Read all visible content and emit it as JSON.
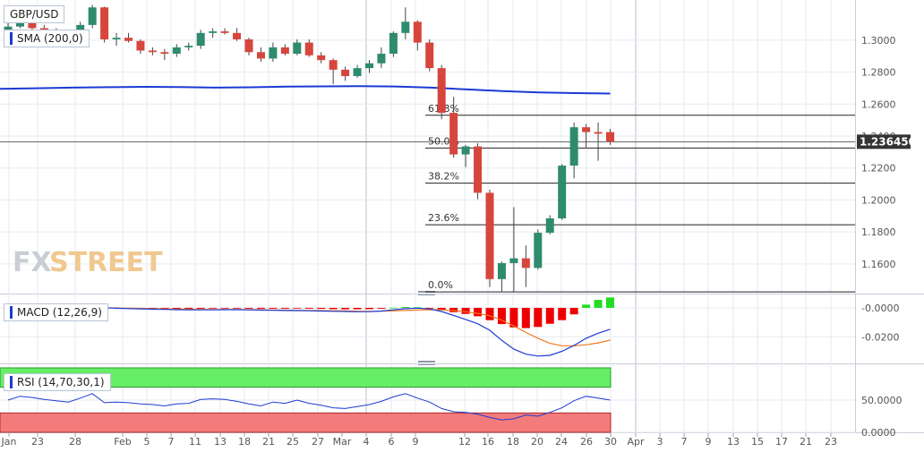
{
  "labels": {
    "pair": "GBP/USD",
    "sma": "SMA (200,0)",
    "macd": "MACD (12,26,9)",
    "rsi": "RSI (14,70,30,1)",
    "watermark_fx": "FX",
    "watermark_street": "STREET",
    "last_price": "1.236450"
  },
  "colors": {
    "bull": "#2e8b6e",
    "bear": "#d6463c",
    "sma": "#1b3ad4",
    "macd_line": "#1b3ad4",
    "signal_line": "#f07820",
    "rsi_overbought": "#66ee66",
    "rsi_oversold": "#f47b7b",
    "grid": "#e6eaf0",
    "text": "#555555"
  },
  "chart_data": [
    {
      "type": "candlestick",
      "title": "GBP/USD",
      "y_ticks": [
        "1.3000",
        "1.2800",
        "1.2600",
        "1.2400",
        "1.2200",
        "1.2000",
        "1.1800",
        "1.1600"
      ],
      "y_range": [
        1.142,
        1.324
      ],
      "x_ticks": [
        "Jan",
        "23",
        "28",
        "Feb",
        "5",
        "7",
        "11",
        "13",
        "18",
        "21",
        "25",
        "27",
        "Mar",
        "4",
        "6",
        "9",
        "12",
        "16",
        "18",
        "20",
        "24",
        "26",
        "30",
        "Apr",
        "3",
        "7",
        "9",
        "13",
        "15",
        "17",
        "21",
        "23"
      ],
      "sma_200": [
        1.2695,
        1.2699,
        1.2703,
        1.2706,
        1.2708,
        1.2707,
        1.2703,
        1.2705,
        1.2709,
        1.2711,
        1.2712,
        1.271,
        1.2703,
        1.2692,
        1.2681,
        1.2673,
        1.2669,
        1.2666
      ],
      "last_price": 1.23645,
      "fibonacci": [
        {
          "label": "0.0%",
          "value": 1.1425
        },
        {
          "label": "23.6%",
          "value": 1.1845
        },
        {
          "label": "38.2%",
          "value": 1.2105
        },
        {
          "label": "50.0%",
          "value": 1.2325
        },
        {
          "label": "61.8%",
          "value": 1.253
        }
      ],
      "candles": [
        {
          "date": "Jan 22",
          "open": 1.3055,
          "high": 1.3115,
          "low": 1.3035,
          "close": 1.3085
        },
        {
          "date": "Jan 23",
          "open": 1.3085,
          "high": 1.3165,
          "low": 1.3075,
          "close": 1.3125
        },
        {
          "date": "Jan 24",
          "open": 1.3125,
          "high": 1.314,
          "low": 1.3045,
          "close": 1.3075
        },
        {
          "date": "Jan 27",
          "open": 1.3075,
          "high": 1.3095,
          "low": 1.3035,
          "close": 1.3065
        },
        {
          "date": "Jan 28",
          "open": 1.3065,
          "high": 1.3075,
          "low": 1.2995,
          "close": 1.3015
        },
        {
          "date": "Jan 29",
          "open": 1.3015,
          "high": 1.3065,
          "low": 1.2985,
          "close": 1.3005
        },
        {
          "date": "Jan 30",
          "open": 1.3005,
          "high": 1.3115,
          "low": 1.2975,
          "close": 1.3095
        },
        {
          "date": "Jan 31",
          "open": 1.3095,
          "high": 1.322,
          "low": 1.3075,
          "close": 1.3205
        },
        {
          "date": "Feb 3",
          "open": 1.3205,
          "high": 1.321,
          "low": 1.2985,
          "close": 1.3005
        },
        {
          "date": "Feb 4",
          "open": 1.3005,
          "high": 1.3045,
          "low": 1.2965,
          "close": 1.3015
        },
        {
          "date": "Feb 5",
          "open": 1.3015,
          "high": 1.3045,
          "low": 1.2985,
          "close": 1.2995
        },
        {
          "date": "Feb 6",
          "open": 1.2995,
          "high": 1.3005,
          "low": 1.2915,
          "close": 1.2935
        },
        {
          "date": "Feb 7",
          "open": 1.2935,
          "high": 1.2955,
          "low": 1.2905,
          "close": 1.2925
        },
        {
          "date": "Feb 10",
          "open": 1.2925,
          "high": 1.2945,
          "low": 1.2875,
          "close": 1.2915
        },
        {
          "date": "Feb 11",
          "open": 1.2915,
          "high": 1.2975,
          "low": 1.2895,
          "close": 1.2955
        },
        {
          "date": "Feb 12",
          "open": 1.2955,
          "high": 1.2985,
          "low": 1.2935,
          "close": 1.2965
        },
        {
          "date": "Feb 13",
          "open": 1.2965,
          "high": 1.3065,
          "low": 1.2945,
          "close": 1.3045
        },
        {
          "date": "Feb 14",
          "open": 1.3045,
          "high": 1.3075,
          "low": 1.3015,
          "close": 1.3055
        },
        {
          "date": "Feb 17",
          "open": 1.3055,
          "high": 1.3075,
          "low": 1.3035,
          "close": 1.3045
        },
        {
          "date": "Feb 18",
          "open": 1.3045,
          "high": 1.3075,
          "low": 1.2995,
          "close": 1.3005
        },
        {
          "date": "Feb 19",
          "open": 1.3005,
          "high": 1.3015,
          "low": 1.2905,
          "close": 1.2925
        },
        {
          "date": "Feb 20",
          "open": 1.2925,
          "high": 1.2955,
          "low": 1.2865,
          "close": 1.2885
        },
        {
          "date": "Feb 21",
          "open": 1.2885,
          "high": 1.2985,
          "low": 1.2865,
          "close": 1.2955
        },
        {
          "date": "Feb 24",
          "open": 1.2955,
          "high": 1.2975,
          "low": 1.2905,
          "close": 1.2915
        },
        {
          "date": "Feb 25",
          "open": 1.2915,
          "high": 1.3005,
          "low": 1.2905,
          "close": 1.2985
        },
        {
          "date": "Feb 26",
          "open": 1.2985,
          "high": 1.3005,
          "low": 1.2895,
          "close": 1.2905
        },
        {
          "date": "Feb 27",
          "open": 1.2905,
          "high": 1.2925,
          "low": 1.2855,
          "close": 1.2875
        },
        {
          "date": "Feb 28",
          "open": 1.2875,
          "high": 1.2885,
          "low": 1.2725,
          "close": 1.2815
        },
        {
          "date": "Mar 2",
          "open": 1.2815,
          "high": 1.2835,
          "low": 1.2745,
          "close": 1.2775
        },
        {
          "date": "Mar 3",
          "open": 1.2775,
          "high": 1.2845,
          "low": 1.2765,
          "close": 1.2825
        },
        {
          "date": "Mar 4",
          "open": 1.2825,
          "high": 1.2875,
          "low": 1.2795,
          "close": 1.2855
        },
        {
          "date": "Mar 5",
          "open": 1.2855,
          "high": 1.2955,
          "low": 1.2825,
          "close": 1.2915
        },
        {
          "date": "Mar 6",
          "open": 1.2915,
          "high": 1.3055,
          "low": 1.2895,
          "close": 1.3045
        },
        {
          "date": "Mar 9",
          "open": 1.3045,
          "high": 1.3205,
          "low": 1.3005,
          "close": 1.3115
        },
        {
          "date": "Mar 10",
          "open": 1.3115,
          "high": 1.3125,
          "low": 1.2935,
          "close": 1.2985
        },
        {
          "date": "Mar 11",
          "open": 1.2985,
          "high": 1.3005,
          "low": 1.2805,
          "close": 1.2825
        },
        {
          "date": "Mar 12",
          "open": 1.2825,
          "high": 1.2845,
          "low": 1.2505,
          "close": 1.2545
        },
        {
          "date": "Mar 13",
          "open": 1.2545,
          "high": 1.2645,
          "low": 1.2265,
          "close": 1.2285
        },
        {
          "date": "Mar 16",
          "open": 1.2285,
          "high": 1.2345,
          "low": 1.2205,
          "close": 1.2335
        },
        {
          "date": "Mar 17",
          "open": 1.2335,
          "high": 1.2355,
          "low": 1.2005,
          "close": 1.2045
        },
        {
          "date": "Mar 18",
          "open": 1.2045,
          "high": 1.2065,
          "low": 1.1455,
          "close": 1.1505
        },
        {
          "date": "Mar 19",
          "open": 1.1505,
          "high": 1.1615,
          "low": 1.1425,
          "close": 1.1605
        },
        {
          "date": "Mar 20",
          "open": 1.1605,
          "high": 1.1955,
          "low": 1.1425,
          "close": 1.1635
        },
        {
          "date": "Mar 23",
          "open": 1.1635,
          "high": 1.1715,
          "low": 1.1455,
          "close": 1.1575
        },
        {
          "date": "Mar 24",
          "open": 1.1575,
          "high": 1.1815,
          "low": 1.1565,
          "close": 1.1795
        },
        {
          "date": "Mar 25",
          "open": 1.1795,
          "high": 1.1905,
          "low": 1.1785,
          "close": 1.1885
        },
        {
          "date": "Mar 26",
          "open": 1.1885,
          "high": 1.2225,
          "low": 1.1875,
          "close": 1.2215
        },
        {
          "date": "Mar 27",
          "open": 1.2215,
          "high": 1.2485,
          "low": 1.2135,
          "close": 1.2455
        },
        {
          "date": "Mar 30",
          "open": 1.2455,
          "high": 1.2475,
          "low": 1.2325,
          "close": 1.2425
        },
        {
          "date": "Mar 31",
          "open": 1.2425,
          "high": 1.2485,
          "low": 1.2245,
          "close": 1.2415
        },
        {
          "date": "Apr 1",
          "open": 1.2425,
          "high": 1.2445,
          "low": 1.2345,
          "close": 1.23645
        }
      ]
    },
    {
      "type": "bar",
      "title": "MACD (12,26,9)",
      "y_ticks": [
        "-0.0000",
        "-0.0200"
      ],
      "y_range": [
        -0.0365,
        0.008
      ],
      "histogram": [
        0.0003,
        0.0004,
        0.0005,
        0.0004,
        0.0004,
        0.0003,
        0.0003,
        0.0004,
        0.0002,
        0.0001,
        -0.0002,
        -0.0004,
        -0.0006,
        -0.0007,
        -0.0007,
        -0.0007,
        -0.0006,
        -0.0005,
        -0.0005,
        -0.0005,
        -0.0006,
        -0.0007,
        -0.0006,
        -0.0006,
        -0.0005,
        -0.0006,
        -0.0007,
        -0.0009,
        -0.001,
        -0.001,
        -0.0009,
        -0.0006,
        0.0001,
        0.0006,
        0.0004,
        -0.0003,
        -0.0016,
        -0.003,
        -0.0042,
        -0.0058,
        -0.0085,
        -0.0112,
        -0.0135,
        -0.014,
        -0.0132,
        -0.011,
        -0.0085,
        -0.0045,
        0.0022,
        0.0055,
        0.0072
      ],
      "macd_line": [
        0.0012,
        0.0011,
        0.0009,
        0.0008,
        0.0006,
        0.0004,
        0.0002,
        0.0001,
        0.0,
        -0.0003,
        -0.0005,
        -0.0007,
        -0.0009,
        -0.0011,
        -0.0013,
        -0.0014,
        -0.0014,
        -0.0014,
        -0.0013,
        -0.0013,
        -0.0014,
        -0.0016,
        -0.0017,
        -0.0018,
        -0.0019,
        -0.002,
        -0.0022,
        -0.0024,
        -0.0025,
        -0.0027,
        -0.0026,
        -0.0022,
        -0.0014,
        -0.0006,
        -0.0002,
        -0.0008,
        -0.0025,
        -0.0052,
        -0.008,
        -0.011,
        -0.0155,
        -0.0225,
        -0.0285,
        -0.032,
        -0.0333,
        -0.0328,
        -0.03,
        -0.026,
        -0.021,
        -0.0175,
        -0.0148
      ],
      "signal_line": [
        0.0008,
        0.0008,
        0.0007,
        0.0006,
        0.0005,
        0.0004,
        0.0003,
        0.0002,
        0.0001,
        -0.0001,
        -0.0003,
        -0.0004,
        -0.0006,
        -0.0007,
        -0.0009,
        -0.001,
        -0.0011,
        -0.0012,
        -0.0012,
        -0.0012,
        -0.0013,
        -0.0014,
        -0.0015,
        -0.0016,
        -0.0017,
        -0.0018,
        -0.0019,
        -0.002,
        -0.0021,
        -0.0023,
        -0.0024,
        -0.0023,
        -0.0021,
        -0.0018,
        -0.0015,
        -0.0013,
        -0.0014,
        -0.0019,
        -0.0027,
        -0.0038,
        -0.0055,
        -0.0085,
        -0.0125,
        -0.017,
        -0.021,
        -0.0245,
        -0.0262,
        -0.0262,
        -0.0255,
        -0.0242,
        -0.0223
      ]
    },
    {
      "type": "line",
      "title": "RSI (14,70,30,1)",
      "y_ticks": [
        "50.0000",
        "0.0000"
      ],
      "y_range": [
        0,
        100
      ],
      "overbought": 70,
      "oversold": 30,
      "rsi": [
        50,
        56,
        54,
        51,
        49,
        47,
        53,
        60,
        46,
        47,
        46,
        44,
        43,
        41,
        44,
        45,
        51,
        52,
        51,
        48,
        44,
        41,
        47,
        45,
        50,
        45,
        42,
        38,
        37,
        40,
        43,
        48,
        55,
        60,
        53,
        47,
        37,
        32,
        31,
        28,
        23,
        19,
        21,
        27,
        25,
        31,
        38,
        49,
        56,
        53,
        50
      ]
    }
  ]
}
